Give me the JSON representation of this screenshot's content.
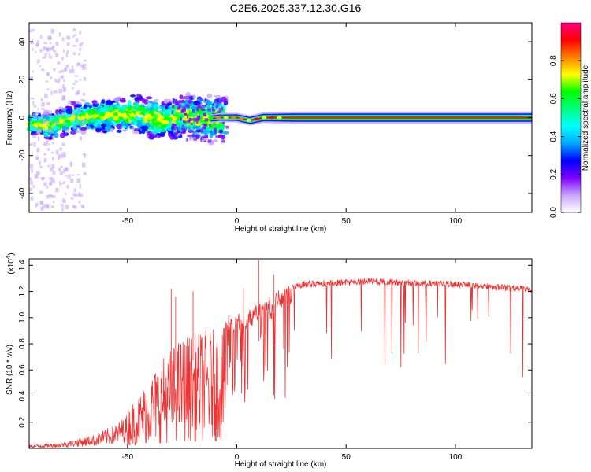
{
  "title": "C2E6.2025.337.12.30.G16",
  "chart_data": [
    {
      "type": "heatmap",
      "xlabel": "Height of straight line (km)",
      "ylabel": "Frequency (Hz)",
      "xlim": [
        -95,
        135
      ],
      "ylim": [
        -50,
        50
      ],
      "x_ticks": [
        -50,
        0,
        50,
        100
      ],
      "x_tick_labels": [
        "-50",
        "0",
        "50",
        "100"
      ],
      "y_ticks": [
        40,
        20,
        0,
        -20,
        -40
      ],
      "y_tick_labels": [
        "40",
        "20",
        "0",
        "-20",
        "-40"
      ],
      "colorbar": {
        "label": "Normalized spectral amplitude",
        "range": [
          0,
          1
        ],
        "ticks": [
          0.0,
          0.2,
          0.4,
          0.6,
          0.8
        ],
        "tick_labels": [
          "0.0",
          "0.2",
          "0.4",
          "0.6",
          "0.8"
        ],
        "colors": [
          "#ffffff",
          "#c9a6ff",
          "#7f00ff",
          "#0000ff",
          "#00a8ff",
          "#00ffff",
          "#00ff80",
          "#00ff00",
          "#ffff00",
          "#ff8000",
          "#ff0000",
          "#ff0080"
        ]
      },
      "ridge": [
        {
          "x": -95,
          "y": -3
        },
        {
          "x": -85,
          "y": -4
        },
        {
          "x": -75,
          "y": 0
        },
        {
          "x": -60,
          "y": 1
        },
        {
          "x": -45,
          "y": 2
        },
        {
          "x": -35,
          "y": -2
        },
        {
          "x": -25,
          "y": 1
        },
        {
          "x": -15,
          "y": -1
        },
        {
          "x": -8,
          "y": 0
        },
        {
          "x": 0,
          "y": 0
        },
        {
          "x": 6,
          "y": -1.5
        },
        {
          "x": 12,
          "y": 0
        },
        {
          "x": 30,
          "y": 0
        },
        {
          "x": 60,
          "y": 0
        },
        {
          "x": 100,
          "y": 0
        },
        {
          "x": 135,
          "y": 0
        }
      ],
      "scatter_region": {
        "x_start": -95,
        "x_end": -5,
        "spread_start": 5,
        "spread_end": 10
      },
      "scatter_hint": "noisy broadband energy below about -10 km, stable line near 0 Hz above 0 km"
    },
    {
      "type": "line",
      "xlabel": "Height of straight line (km)",
      "ylabel": "SNR (10 * v/v)",
      "y_scale_label": "(x10",
      "y_scale_exp": "4",
      "y_scale_close": ")",
      "xlim": [
        -95,
        135
      ],
      "ylim": [
        0,
        1.45
      ],
      "x_ticks": [
        -50,
        0,
        50,
        100
      ],
      "x_tick_labels": [
        "-50",
        "0",
        "50",
        "100"
      ],
      "y_ticks": [
        0.2,
        0.4,
        0.6,
        0.8,
        1.0,
        1.2,
        1.4
      ],
      "y_tick_labels": [
        "0.2",
        "0.4",
        "0.6",
        "0.8",
        "1.0",
        "1.2",
        "1.4"
      ],
      "series": [
        {
          "color": "#ee3333",
          "envelope": [
            {
              "x": -95,
              "y": 0.03
            },
            {
              "x": -80,
              "y": 0.06
            },
            {
              "x": -65,
              "y": 0.14
            },
            {
              "x": -55,
              "y": 0.25
            },
            {
              "x": -45,
              "y": 0.45
            },
            {
              "x": -35,
              "y": 0.75
            },
            {
              "x": -25,
              "y": 0.95
            },
            {
              "x": -15,
              "y": 1.0
            },
            {
              "x": -5,
              "y": 1.02
            },
            {
              "x": 5,
              "y": 1.05
            },
            {
              "x": 10,
              "y": 1.12
            },
            {
              "x": 20,
              "y": 1.22
            },
            {
              "x": 30,
              "y": 1.28
            },
            {
              "x": 60,
              "y": 1.3
            },
            {
              "x": 100,
              "y": 1.28
            },
            {
              "x": 135,
              "y": 1.24
            }
          ],
          "spikes": [
            {
              "x": -30,
              "y": 1.22
            },
            {
              "x": -28,
              "y": 1.16
            },
            {
              "x": -20,
              "y": 1.2
            },
            {
              "x": 10,
              "y": 1.44
            },
            {
              "x": 17,
              "y": 1.33
            },
            {
              "x": 3,
              "y": 1.22
            }
          ]
        }
      ]
    }
  ]
}
